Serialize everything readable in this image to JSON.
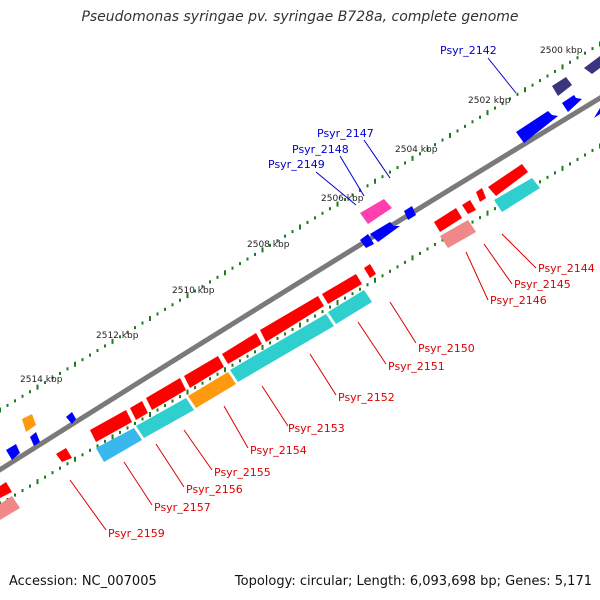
{
  "title": "Pseudomonas syringae pv. syringae B728a, complete genome",
  "footer": {
    "accession": "Accession: NC_007005",
    "topology": "Topology: circular; Length: 6,093,698 bp; Genes: 5,171"
  },
  "colors": {
    "backbone": "#7a7a7a",
    "forward_gene": "#0000ff",
    "reverse_gene": "#ff0000",
    "forward_label": "#0000cc",
    "reverse_label": "#dd0000",
    "tick": "#1e7a1e",
    "dark_blue_gene": "#3b3580",
    "magenta_gene": "#ff3fb0",
    "pink_gene": "#f08888",
    "cyan_gene": "#2fcfcf",
    "orange_gene": "#ff9a10",
    "sky_gene": "#3ab8ee"
  },
  "coordinate_labels": [
    "2500 kbp",
    "2502 kbp",
    "2504 kbp",
    "2506 kbp",
    "2508 kbp",
    "2510 kbp",
    "2512 kbp",
    "2514 kbp"
  ],
  "gene_labels_forward": [
    "Psyr_2142",
    "Psyr_2147",
    "Psyr_2148",
    "Psyr_2149"
  ],
  "gene_labels_reverse": [
    "Psyr_2144",
    "Psyr_2145",
    "Psyr_2146",
    "Psyr_2150",
    "Psyr_2151",
    "Psyr_2152",
    "Psyr_2153",
    "Psyr_2154",
    "Psyr_2155",
    "Psyr_2156",
    "Psyr_2157",
    "Psyr_2159"
  ]
}
